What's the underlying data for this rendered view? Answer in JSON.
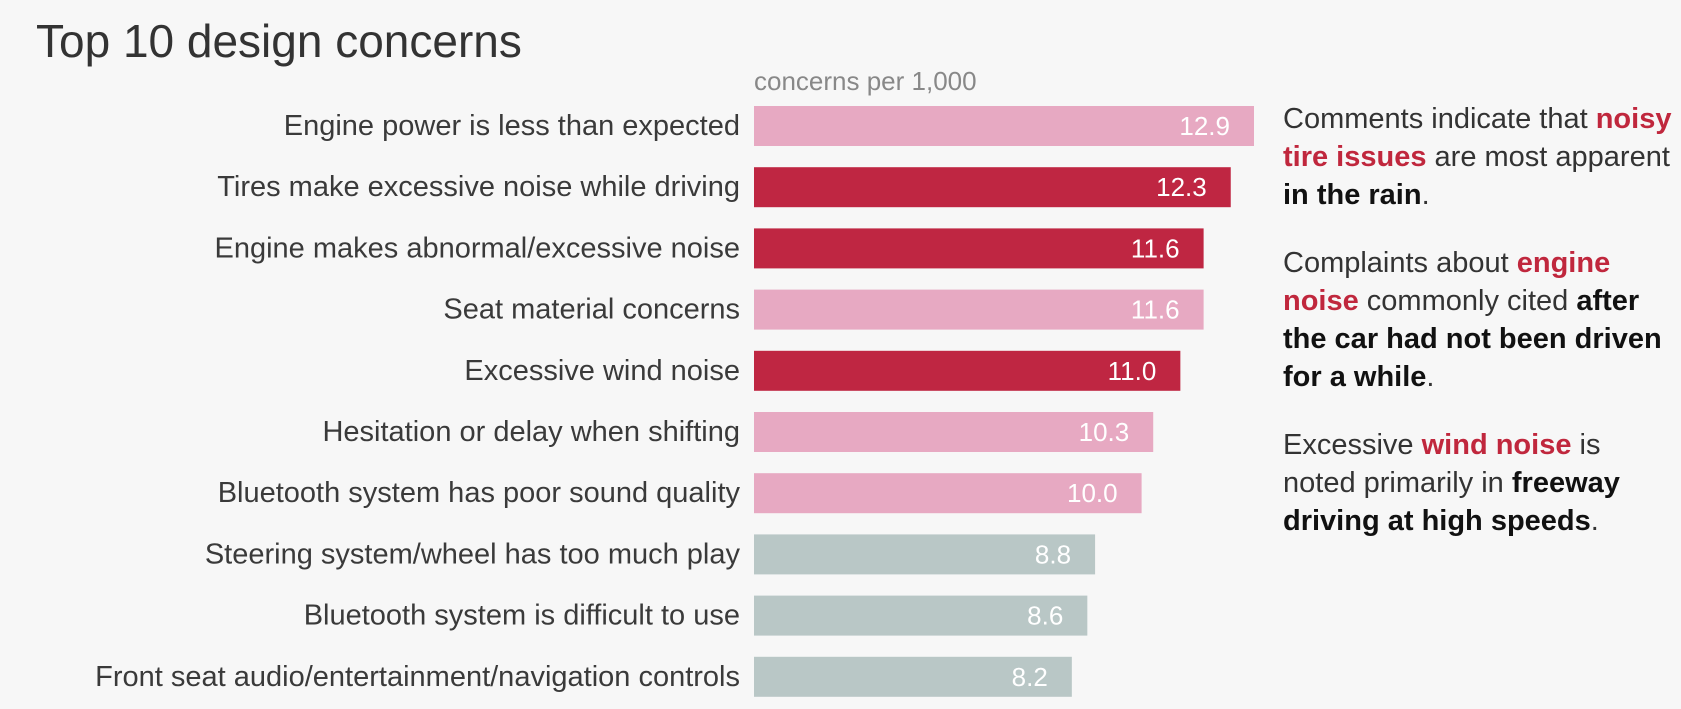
{
  "title": "Top 10 design concerns",
  "units_label": "concerns per 1,000",
  "colors": {
    "pink": "#e7a9c2",
    "red": "#bf2642",
    "gray": "#b9c7c6",
    "highlight_text": "#c0273d"
  },
  "chart_data": {
    "type": "bar",
    "orientation": "horizontal",
    "title": "Top 10 design concerns",
    "xlabel": "concerns per 1,000",
    "ylabel": "",
    "categories": [
      "Engine power is less than expected",
      "Tires make excessive noise while driving",
      "Engine makes abnormal/excessive noise",
      "Seat material concerns",
      "Excessive wind noise",
      "Hesitation or delay when shifting",
      "Bluetooth system has poor sound quality",
      "Steering system/wheel has too much play",
      "Bluetooth system is difficult to use",
      "Front seat audio/entertainment/navigation controls"
    ],
    "values": [
      12.9,
      12.3,
      11.6,
      11.6,
      11.0,
      10.3,
      10.0,
      8.8,
      8.6,
      8.2
    ],
    "value_labels": [
      "12.9",
      "12.3",
      "11.6",
      "11.6",
      "11.0",
      "10.3",
      "10.0",
      "8.8",
      "8.6",
      "8.2"
    ],
    "bar_colors": [
      "pink",
      "red",
      "red",
      "pink",
      "red",
      "pink",
      "pink",
      "gray",
      "gray",
      "gray"
    ],
    "xlim": [
      0,
      12.9
    ],
    "grid": false,
    "legend": "none"
  },
  "notes": [
    {
      "segments": [
        {
          "text": "Comments indicate that ",
          "style": "plain"
        },
        {
          "text": "noisy tire issues",
          "style": "highlight"
        },
        {
          "text": " are most apparent ",
          "style": "plain"
        },
        {
          "text": "in the rain",
          "style": "bold"
        },
        {
          "text": ".",
          "style": "plain"
        }
      ]
    },
    {
      "segments": [
        {
          "text": "Complaints about ",
          "style": "plain"
        },
        {
          "text": "engine noise",
          "style": "highlight"
        },
        {
          "text": " commonly cited ",
          "style": "plain"
        },
        {
          "text": "after the car had not been driven for a while",
          "style": "bold"
        },
        {
          "text": ".",
          "style": "plain"
        }
      ]
    },
    {
      "segments": [
        {
          "text": "Excessive ",
          "style": "plain"
        },
        {
          "text": "wind noise",
          "style": "highlight"
        },
        {
          "text": " is noted primarily in ",
          "style": "plain"
        },
        {
          "text": "freeway driving at high speeds",
          "style": "bold"
        },
        {
          "text": ".",
          "style": "plain"
        }
      ]
    }
  ]
}
